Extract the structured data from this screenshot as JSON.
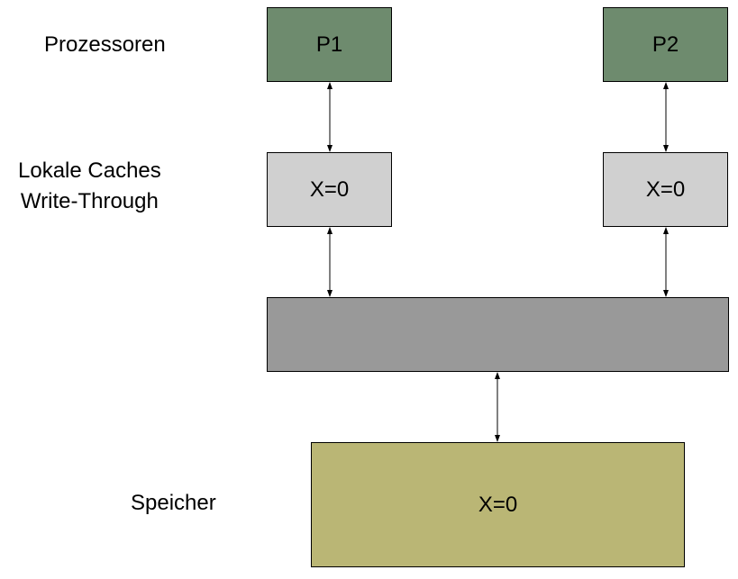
{
  "labels": {
    "processors": "Prozessoren",
    "caches_line1": "Lokale Caches",
    "caches_line2": "Write-Through",
    "memory": "Speicher"
  },
  "processors": [
    {
      "label": "P1"
    },
    {
      "label": "P2"
    }
  ],
  "caches": [
    {
      "value": "X=0"
    },
    {
      "value": "X=0"
    }
  ],
  "memory": {
    "value": "X=0"
  },
  "colors": {
    "processor": "#6e8b6e",
    "cache": "#d0d0d0",
    "bus": "#999999",
    "memory": "#bab675"
  }
}
